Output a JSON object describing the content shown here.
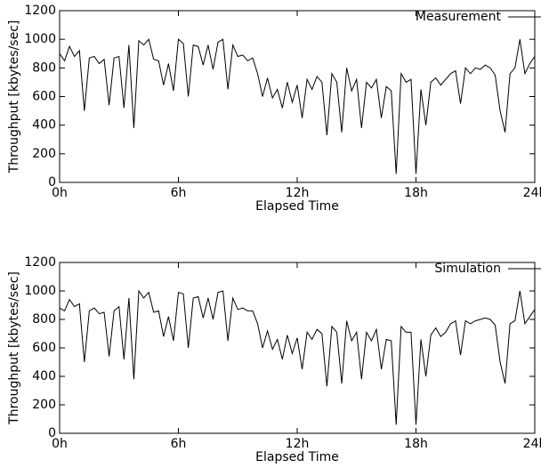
{
  "chart_data": [
    {
      "type": "line",
      "xlabel": "Elapsed Time",
      "ylabel": "Throughput [kbytes/sec]",
      "xlim": [
        0,
        24
      ],
      "ylim": [
        0,
        1200
      ],
      "xticks": [
        {
          "value": 0,
          "label": "0h"
        },
        {
          "value": 6,
          "label": "6h"
        },
        {
          "value": 12,
          "label": "12h"
        },
        {
          "value": 18,
          "label": "18h"
        },
        {
          "value": 24,
          "label": "24h"
        }
      ],
      "yticks": [
        0,
        200,
        400,
        600,
        800,
        1000,
        1200
      ],
      "legend": "upper right",
      "x": [
        0,
        0.25,
        0.5,
        0.75,
        1,
        1.25,
        1.5,
        1.75,
        2,
        2.25,
        2.5,
        2.75,
        3,
        3.25,
        3.5,
        3.75,
        4,
        4.25,
        4.5,
        4.75,
        5,
        5.25,
        5.5,
        5.75,
        6,
        6.25,
        6.5,
        6.75,
        7,
        7.25,
        7.5,
        7.75,
        8,
        8.25,
        8.5,
        8.75,
        9,
        9.25,
        9.5,
        9.75,
        10,
        10.25,
        10.5,
        10.75,
        11,
        11.25,
        11.5,
        11.75,
        12,
        12.25,
        12.5,
        12.75,
        13,
        13.25,
        13.5,
        13.75,
        14,
        14.25,
        14.5,
        14.75,
        15,
        15.25,
        15.5,
        15.75,
        16,
        16.25,
        16.5,
        16.75,
        17,
        17.25,
        17.5,
        17.75,
        18,
        18.25,
        18.5,
        18.75,
        19,
        19.25,
        19.5,
        19.75,
        20,
        20.25,
        20.5,
        20.75,
        21,
        21.25,
        21.5,
        21.75,
        22,
        22.25,
        22.5,
        22.75,
        23,
        23.25,
        23.5,
        23.75,
        24
      ],
      "series": [
        {
          "name": "Measurement",
          "color": "#000000",
          "values": [
            900,
            850,
            950,
            880,
            920,
            500,
            870,
            880,
            830,
            860,
            540,
            870,
            880,
            520,
            960,
            380,
            990,
            960,
            1000,
            860,
            850,
            680,
            830,
            640,
            1000,
            970,
            600,
            960,
            950,
            820,
            960,
            790,
            980,
            1000,
            650,
            960,
            880,
            890,
            850,
            870,
            760,
            600,
            730,
            590,
            650,
            520,
            700,
            560,
            680,
            450,
            720,
            650,
            740,
            700,
            330,
            760,
            700,
            350,
            800,
            640,
            720,
            380,
            700,
            660,
            720,
            450,
            670,
            640,
            60,
            760,
            700,
            720,
            60,
            650,
            400,
            700,
            730,
            680,
            720,
            760,
            780,
            550,
            800,
            760,
            800,
            790,
            820,
            800,
            750,
            500,
            350,
            760,
            800,
            1000,
            760,
            830,
            880
          ]
        }
      ]
    },
    {
      "type": "line",
      "xlabel": "Elapsed Time",
      "ylabel": "Throughput [kbytes/sec]",
      "xlim": [
        0,
        24
      ],
      "ylim": [
        0,
        1200
      ],
      "xticks": [
        {
          "value": 0,
          "label": "0h"
        },
        {
          "value": 6,
          "label": "6h"
        },
        {
          "value": 12,
          "label": "12h"
        },
        {
          "value": 18,
          "label": "18h"
        },
        {
          "value": 24,
          "label": "24h"
        }
      ],
      "yticks": [
        0,
        200,
        400,
        600,
        800,
        1000,
        1200
      ],
      "legend": "upper right",
      "x": [
        0,
        0.25,
        0.5,
        0.75,
        1,
        1.25,
        1.5,
        1.75,
        2,
        2.25,
        2.5,
        2.75,
        3,
        3.25,
        3.5,
        3.75,
        4,
        4.25,
        4.5,
        4.75,
        5,
        5.25,
        5.5,
        5.75,
        6,
        6.25,
        6.5,
        6.75,
        7,
        7.25,
        7.5,
        7.75,
        8,
        8.25,
        8.5,
        8.75,
        9,
        9.25,
        9.5,
        9.75,
        10,
        10.25,
        10.5,
        10.75,
        11,
        11.25,
        11.5,
        11.75,
        12,
        12.25,
        12.5,
        12.75,
        13,
        13.25,
        13.5,
        13.75,
        14,
        14.25,
        14.5,
        14.75,
        15,
        15.25,
        15.5,
        15.75,
        16,
        16.25,
        16.5,
        16.75,
        17,
        17.25,
        17.5,
        17.75,
        18,
        18.25,
        18.5,
        18.75,
        19,
        19.25,
        19.5,
        19.75,
        20,
        20.25,
        20.5,
        20.75,
        21,
        21.25,
        21.5,
        21.75,
        22,
        22.25,
        22.5,
        22.75,
        23,
        23.25,
        23.5,
        23.75,
        24
      ],
      "series": [
        {
          "name": "Simulation",
          "color": "#000000",
          "values": [
            880,
            860,
            940,
            890,
            910,
            500,
            860,
            880,
            840,
            850,
            540,
            860,
            890,
            520,
            950,
            380,
            1000,
            950,
            990,
            850,
            860,
            680,
            820,
            650,
            990,
            980,
            600,
            950,
            960,
            810,
            950,
            800,
            990,
            1000,
            650,
            950,
            870,
            880,
            860,
            860,
            770,
            600,
            720,
            590,
            660,
            520,
            690,
            560,
            670,
            450,
            710,
            660,
            730,
            700,
            330,
            750,
            710,
            350,
            790,
            650,
            710,
            380,
            710,
            650,
            730,
            450,
            660,
            650,
            60,
            750,
            710,
            710,
            60,
            660,
            400,
            690,
            740,
            680,
            710,
            770,
            790,
            550,
            790,
            770,
            790,
            800,
            810,
            800,
            760,
            500,
            350,
            770,
            790,
            1000,
            770,
            820,
            870
          ]
        }
      ]
    }
  ]
}
